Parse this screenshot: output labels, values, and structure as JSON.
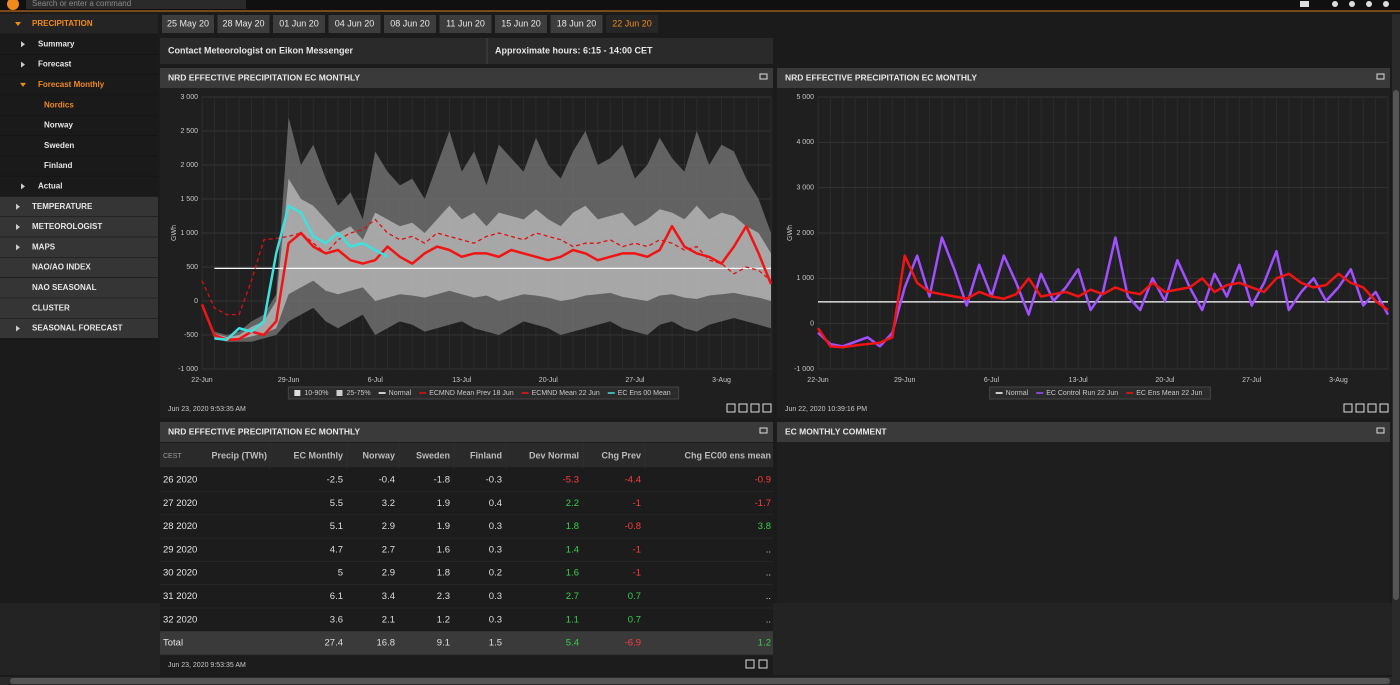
{
  "top_bar": {
    "search_placeholder": "Search or enter a command"
  },
  "sidebar": {
    "items": [
      {
        "label": "PRECIPITATION",
        "active": true,
        "children": [
          {
            "label": "Summary",
            "collapsed": true
          },
          {
            "label": "Forecast",
            "collapsed": true
          },
          {
            "label": "Forecast Monthly",
            "active": true,
            "children": [
              {
                "label": "Nordics",
                "active": true
              },
              {
                "label": "Norway"
              },
              {
                "label": "Sweden"
              },
              {
                "label": "Finland"
              }
            ]
          },
          {
            "label": "Actual",
            "collapsed": true
          }
        ]
      },
      {
        "label": "TEMPERATURE",
        "collapsed": true
      },
      {
        "label": "METEOROLOGIST",
        "collapsed": true
      },
      {
        "label": "MAPS",
        "collapsed": true
      },
      {
        "label": "NAO/AO INDEX"
      },
      {
        "label": "NAO SEASONAL"
      },
      {
        "label": "CLUSTER"
      },
      {
        "label": "SEASONAL FORECAST",
        "collapsed": true
      }
    ]
  },
  "date_tabs": {
    "tabs": [
      "25 May 20",
      "28 May 20",
      "01 Jun 20",
      "04 Jun 20",
      "08 Jun 20",
      "11 Jun 20",
      "15 Jun 20",
      "18 Jun 20",
      "22 Jun 20"
    ],
    "active": 8
  },
  "contact": {
    "messenger": "Contact Meteorologist on Eikon Messenger",
    "hours": "Approximate hours: 6:15 - 14:00 CET"
  },
  "chart_data": [
    {
      "type": "line",
      "title": "NRD EFFECTIVE PRECIPITATION EC MONTHLY",
      "ylabel": "GWh",
      "footer": "Jun 23, 2020 9:53:35 AM",
      "categories": [
        "22-Jun",
        null,
        null,
        null,
        null,
        null,
        null,
        "29-Jun",
        null,
        null,
        null,
        null,
        null,
        null,
        "6-Jul",
        null,
        null,
        null,
        null,
        null,
        null,
        "13-Jul",
        null,
        null,
        null,
        null,
        null,
        null,
        "20-Jul",
        null,
        null,
        null,
        null,
        null,
        null,
        "27-Jul",
        null,
        null,
        null,
        null,
        null,
        null,
        "3-Aug",
        null,
        null,
        null,
        null
      ],
      "ylim": [
        -1000,
        3000
      ],
      "yticks": [
        {
          "value": -1000,
          "label": "-1 000"
        },
        -500,
        0,
        500,
        {
          "value": 1000,
          "label": "1 000"
        },
        {
          "value": 1500,
          "label": "1 500"
        },
        {
          "value": 2000,
          "label": "2 000"
        },
        {
          "value": 2500,
          "label": "2 500"
        },
        {
          "value": 3000,
          "label": "3 000"
        }
      ],
      "grid": true,
      "bands": [
        {
          "name": "10-90%",
          "color": "#6f6f6f",
          "high": [
            -50,
            -450,
            -500,
            -450,
            -300,
            -200,
            100,
            2700,
            2000,
            2300,
            1800,
            1400,
            1600,
            1200,
            2200,
            1900,
            1700,
            1800,
            1500,
            2000,
            2500,
            1900,
            2200,
            1700,
            2300,
            2100,
            1900,
            2400,
            2000,
            1800,
            2200,
            2500,
            2000,
            2100,
            2300,
            1800,
            2000,
            2400,
            2100,
            1900,
            2500,
            2000,
            2300,
            2200,
            1800,
            1500,
            1000
          ],
          "low": [
            -100,
            -550,
            -600,
            -600,
            -600,
            -550,
            -500,
            -300,
            -200,
            -100,
            -300,
            -400,
            -300,
            -200,
            -500,
            -400,
            -300,
            -350,
            -450,
            -400,
            -350,
            -300,
            -400,
            -450,
            -500,
            -400,
            -300,
            -350,
            -400,
            -500,
            -450,
            -400,
            -350,
            -300,
            -400,
            -450,
            -500,
            -350,
            -300,
            -400,
            -450,
            -350,
            -300,
            -250,
            -300,
            -350,
            -400
          ]
        },
        {
          "name": "25-75%",
          "color": "#b4b4b4",
          "high": [
            -60,
            -480,
            -530,
            -500,
            -380,
            -300,
            0,
            1800,
            1500,
            1400,
            1200,
            1000,
            1100,
            900,
            1300,
            1200,
            1100,
            1150,
            1000,
            1200,
            1400,
            1200,
            1300,
            1100,
            1300,
            1250,
            1200,
            1350,
            1200,
            1100,
            1300,
            1400,
            1200,
            1250,
            1300,
            1100,
            1200,
            1350,
            1300,
            1200,
            1400,
            1200,
            1300,
            1250,
            1100,
            1000,
            700
          ],
          "low": [
            -80,
            -520,
            -570,
            -560,
            -520,
            -480,
            -400,
            100,
            200,
            300,
            150,
            100,
            150,
            200,
            0,
            50,
            100,
            80,
            50,
            100,
            150,
            100,
            50,
            80,
            0,
            50,
            100,
            80,
            50,
            0,
            30,
            80,
            100,
            120,
            60,
            30,
            0,
            80,
            100,
            50,
            30,
            80,
            100,
            120,
            80,
            50,
            0
          ]
        }
      ],
      "series": [
        {
          "name": "Normal",
          "color": "#ffffff",
          "values": [
            null,
            480,
            480,
            480,
            480,
            480,
            480,
            480,
            480,
            480,
            480,
            480,
            480,
            480,
            480,
            480,
            480,
            480,
            480,
            480,
            480,
            480,
            480,
            480,
            480,
            480,
            480,
            480,
            480,
            480,
            480,
            480,
            480,
            480,
            480,
            480,
            480,
            480,
            480,
            480,
            480,
            480,
            480,
            480,
            480,
            480,
            480
          ]
        },
        {
          "name": "ECMND Mean Prev 18 Jun",
          "color": "#e01010",
          "dashed": true,
          "values": [
            300,
            -100,
            -200,
            -200,
            300,
            900,
            920,
            950,
            1000,
            850,
            700,
            900,
            1000,
            1050,
            1200,
            1000,
            900,
            950,
            850,
            1000,
            950,
            900,
            850,
            950,
            1000,
            950,
            900,
            1000,
            950,
            900,
            800,
            850,
            850,
            900,
            800,
            850,
            800,
            900,
            850,
            750,
            800,
            600,
            550,
            400,
            500,
            450,
            300
          ]
        },
        {
          "name": "ECMND Mean 22 Jun",
          "color": "#f01414",
          "values": [
            -50,
            -500,
            -570,
            -560,
            -450,
            -500,
            -300,
            850,
            1000,
            800,
            700,
            750,
            600,
            550,
            600,
            800,
            650,
            550,
            700,
            800,
            750,
            650,
            700,
            700,
            650,
            750,
            700,
            650,
            600,
            650,
            750,
            700,
            600,
            650,
            700,
            700,
            650,
            750,
            1100,
            800,
            700,
            650,
            550,
            800,
            1100,
            700,
            250
          ]
        },
        {
          "name": "EC Ens 00 Mean",
          "color": "#3fe0e0",
          "values": [
            null,
            -550,
            -570,
            -400,
            -450,
            -300,
            700,
            1400,
            1300,
            950,
            850,
            1000,
            800,
            850,
            750,
            650,
            null,
            null,
            null,
            null,
            null,
            null,
            null,
            null,
            null,
            null,
            null,
            null,
            null,
            null,
            null,
            null,
            null,
            null,
            null,
            null,
            null,
            null,
            null,
            null,
            null,
            null,
            null,
            null,
            null,
            null,
            null
          ]
        }
      ]
    },
    {
      "type": "line",
      "title": "NRD EFFECTIVE PRECIPITATION EC MONTHLY",
      "ylabel": "GWh",
      "footer": "Jun 22, 2020 10:39:16 PM",
      "categories": [
        "22-Jun",
        null,
        null,
        null,
        null,
        null,
        null,
        "29-Jun",
        null,
        null,
        null,
        null,
        null,
        null,
        "6-Jul",
        null,
        null,
        null,
        null,
        null,
        null,
        "13-Jul",
        null,
        null,
        null,
        null,
        null,
        null,
        "20-Jul",
        null,
        null,
        null,
        null,
        null,
        null,
        "27-Jul",
        null,
        null,
        null,
        null,
        null,
        null,
        "3-Aug",
        null,
        null,
        null,
        null
      ],
      "ylim": [
        -1000,
        5000
      ],
      "yticks": [
        {
          "value": -1000,
          "label": "-1 000"
        },
        0,
        {
          "value": 1000,
          "label": "1 000"
        },
        {
          "value": 2000,
          "label": "2 000"
        },
        {
          "value": 3000,
          "label": "3 000"
        },
        {
          "value": 4000,
          "label": "4 000"
        },
        {
          "value": 5000,
          "label": "5 000"
        }
      ],
      "grid": true,
      "series": [
        {
          "name": "Normal",
          "color": "#ffffff",
          "values": [
            480,
            480,
            480,
            480,
            480,
            480,
            480,
            480,
            480,
            480,
            480,
            480,
            480,
            480,
            480,
            480,
            480,
            480,
            480,
            480,
            480,
            480,
            480,
            480,
            480,
            480,
            480,
            480,
            480,
            480,
            480,
            480,
            480,
            480,
            480,
            480,
            480,
            480,
            480,
            480,
            480,
            480,
            480,
            480,
            480,
            480,
            480
          ]
        },
        {
          "name": "EC Control Run 22 Jun",
          "color": "#a050ff",
          "values": [
            -200,
            -450,
            -500,
            -400,
            -300,
            -500,
            -200,
            800,
            1500,
            600,
            1900,
            1200,
            400,
            1300,
            600,
            1500,
            900,
            200,
            1100,
            500,
            800,
            1200,
            300,
            700,
            1900,
            600,
            300,
            1000,
            500,
            1400,
            800,
            300,
            1100,
            600,
            1300,
            400,
            900,
            1600,
            300,
            700,
            1000,
            500,
            800,
            1200,
            400,
            700,
            200
          ]
        },
        {
          "name": "EC Ens Mean 22 Jun",
          "color": "#f01414",
          "values": [
            -100,
            -500,
            -520,
            -480,
            -450,
            -420,
            -300,
            1500,
            900,
            700,
            650,
            600,
            550,
            700,
            600,
            550,
            650,
            1000,
            600,
            650,
            700,
            600,
            750,
            650,
            800,
            700,
            650,
            900,
            700,
            750,
            800,
            1000,
            700,
            850,
            900,
            800,
            700,
            1000,
            1100,
            900,
            800,
            850,
            1100,
            900,
            800,
            500,
            300
          ]
        }
      ]
    }
  ],
  "table": {
    "title": "NRD EFFECTIVE PRECIPITATION EC MONTHLY",
    "corner": "CEST",
    "columns": [
      "Precip (TWh)",
      "EC Monthly",
      "Norway",
      "Sweden",
      "Finland",
      "Dev Normal",
      "Chg Prev",
      "Chg EC00 ens mean"
    ],
    "rows": [
      [
        "26 2020",
        -2.5,
        -0.4,
        -1.8,
        -0.3,
        -5.3,
        -4.4,
        -0.9
      ],
      [
        "27 2020",
        5.5,
        3.2,
        1.9,
        0.4,
        2.2,
        -1,
        -1.7
      ],
      [
        "28 2020",
        5.1,
        2.9,
        1.9,
        0.3,
        1.8,
        -0.8,
        3.8
      ],
      [
        "29 2020",
        4.7,
        2.7,
        1.6,
        0.3,
        1.4,
        -1,
        ".."
      ],
      [
        "30 2020",
        5,
        2.9,
        1.8,
        0.2,
        1.6,
        -1,
        ".."
      ],
      [
        "31 2020",
        6.1,
        3.4,
        2.3,
        0.3,
        2.7,
        0.7,
        ".."
      ],
      [
        "32 2020",
        3.6,
        2.1,
        1.2,
        0.3,
        1.1,
        0.7,
        ".."
      ]
    ],
    "total": [
      "Total",
      27.4,
      16.8,
      9.1,
      1.5,
      5.4,
      -6.9,
      1.2
    ],
    "footer": "Jun 23, 2020 9:53:35 AM"
  },
  "comment": {
    "title": "EC MONTHLY COMMENT"
  }
}
